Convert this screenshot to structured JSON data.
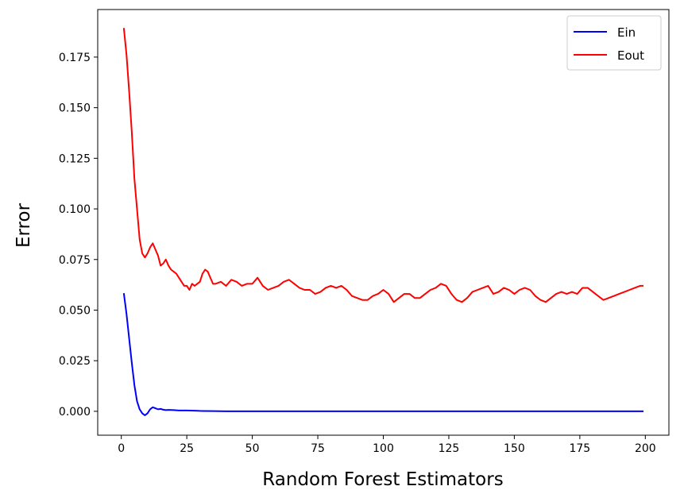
{
  "chart_data": {
    "type": "line",
    "title": "",
    "xlabel": "Random Forest Estimators",
    "ylabel": "Error",
    "xlim": [
      -9,
      209
    ],
    "ylim": [
      -0.0118,
      0.1985
    ],
    "xticks": [
      0,
      25,
      50,
      75,
      100,
      125,
      150,
      175,
      200
    ],
    "xtick_labels": [
      "0",
      "25",
      "50",
      "75",
      "100",
      "125",
      "150",
      "175",
      "200"
    ],
    "yticks": [
      0.0,
      0.025,
      0.05,
      0.075,
      0.1,
      0.125,
      0.15,
      0.175
    ],
    "ytick_labels": [
      "0.000",
      "0.025",
      "0.050",
      "0.075",
      "0.100",
      "0.125",
      "0.150",
      "0.175"
    ],
    "grid": false,
    "legend_position": "top-right",
    "series": [
      {
        "name": "Ein",
        "color": "#0000ff",
        "points": [
          [
            1,
            0.058
          ],
          [
            2,
            0.048
          ],
          [
            3,
            0.036
          ],
          [
            4,
            0.024
          ],
          [
            5,
            0.013
          ],
          [
            6,
            0.005
          ],
          [
            7,
            0.001
          ],
          [
            8,
            -0.001
          ],
          [
            9,
            -0.002
          ],
          [
            10,
            -0.001
          ],
          [
            11,
            0.001
          ],
          [
            12,
            0.002
          ],
          [
            13,
            0.0015
          ],
          [
            14,
            0.001
          ],
          [
            15,
            0.0012
          ],
          [
            16,
            0.0008
          ],
          [
            17,
            0.0006
          ],
          [
            18,
            0.0007
          ],
          [
            20,
            0.0006
          ],
          [
            22,
            0.0004
          ],
          [
            25,
            0.0004
          ],
          [
            28,
            0.0003
          ],
          [
            30,
            0.0002
          ],
          [
            35,
            0.0001
          ],
          [
            40,
            0.0
          ],
          [
            60,
            0.0
          ],
          [
            80,
            0.0
          ],
          [
            100,
            0.0
          ],
          [
            120,
            0.0
          ],
          [
            140,
            0.0
          ],
          [
            160,
            0.0
          ],
          [
            180,
            0.0
          ],
          [
            199,
            0.0
          ]
        ]
      },
      {
        "name": "Eout",
        "color": "#ff0000",
        "points": [
          [
            1,
            0.189
          ],
          [
            2,
            0.176
          ],
          [
            3,
            0.158
          ],
          [
            4,
            0.138
          ],
          [
            5,
            0.115
          ],
          [
            6,
            0.1
          ],
          [
            7,
            0.085
          ],
          [
            8,
            0.078
          ],
          [
            9,
            0.076
          ],
          [
            10,
            0.078
          ],
          [
            11,
            0.081
          ],
          [
            12,
            0.083
          ],
          [
            13,
            0.08
          ],
          [
            14,
            0.077
          ],
          [
            15,
            0.072
          ],
          [
            16,
            0.073
          ],
          [
            17,
            0.075
          ],
          [
            18,
            0.072
          ],
          [
            19,
            0.07
          ],
          [
            20,
            0.069
          ],
          [
            21,
            0.068
          ],
          [
            22,
            0.066
          ],
          [
            23,
            0.064
          ],
          [
            24,
            0.062
          ],
          [
            25,
            0.062
          ],
          [
            26,
            0.06
          ],
          [
            27,
            0.063
          ],
          [
            28,
            0.062
          ],
          [
            29,
            0.063
          ],
          [
            30,
            0.064
          ],
          [
            31,
            0.068
          ],
          [
            32,
            0.07
          ],
          [
            33,
            0.069
          ],
          [
            34,
            0.066
          ],
          [
            35,
            0.063
          ],
          [
            36,
            0.063
          ],
          [
            38,
            0.064
          ],
          [
            40,
            0.062
          ],
          [
            42,
            0.065
          ],
          [
            44,
            0.064
          ],
          [
            46,
            0.062
          ],
          [
            48,
            0.063
          ],
          [
            50,
            0.063
          ],
          [
            52,
            0.066
          ],
          [
            54,
            0.062
          ],
          [
            56,
            0.06
          ],
          [
            58,
            0.061
          ],
          [
            60,
            0.062
          ],
          [
            62,
            0.064
          ],
          [
            64,
            0.065
          ],
          [
            66,
            0.063
          ],
          [
            68,
            0.061
          ],
          [
            70,
            0.06
          ],
          [
            72,
            0.06
          ],
          [
            74,
            0.058
          ],
          [
            76,
            0.059
          ],
          [
            78,
            0.061
          ],
          [
            80,
            0.062
          ],
          [
            82,
            0.061
          ],
          [
            84,
            0.062
          ],
          [
            86,
            0.06
          ],
          [
            88,
            0.057
          ],
          [
            90,
            0.056
          ],
          [
            92,
            0.055
          ],
          [
            94,
            0.055
          ],
          [
            96,
            0.057
          ],
          [
            98,
            0.058
          ],
          [
            100,
            0.06
          ],
          [
            102,
            0.058
          ],
          [
            104,
            0.054
          ],
          [
            106,
            0.056
          ],
          [
            108,
            0.058
          ],
          [
            110,
            0.058
          ],
          [
            112,
            0.056
          ],
          [
            114,
            0.056
          ],
          [
            116,
            0.058
          ],
          [
            118,
            0.06
          ],
          [
            120,
            0.061
          ],
          [
            122,
            0.063
          ],
          [
            124,
            0.062
          ],
          [
            126,
            0.058
          ],
          [
            128,
            0.055
          ],
          [
            130,
            0.054
          ],
          [
            132,
            0.056
          ],
          [
            134,
            0.059
          ],
          [
            136,
            0.06
          ],
          [
            138,
            0.061
          ],
          [
            140,
            0.062
          ],
          [
            142,
            0.058
          ],
          [
            144,
            0.059
          ],
          [
            146,
            0.061
          ],
          [
            148,
            0.06
          ],
          [
            150,
            0.058
          ],
          [
            152,
            0.06
          ],
          [
            154,
            0.061
          ],
          [
            156,
            0.06
          ],
          [
            158,
            0.057
          ],
          [
            160,
            0.055
          ],
          [
            162,
            0.054
          ],
          [
            164,
            0.056
          ],
          [
            166,
            0.058
          ],
          [
            168,
            0.059
          ],
          [
            170,
            0.058
          ],
          [
            172,
            0.059
          ],
          [
            174,
            0.058
          ],
          [
            176,
            0.061
          ],
          [
            178,
            0.061
          ],
          [
            180,
            0.059
          ],
          [
            182,
            0.057
          ],
          [
            184,
            0.055
          ],
          [
            186,
            0.056
          ],
          [
            188,
            0.057
          ],
          [
            190,
            0.058
          ],
          [
            192,
            0.059
          ],
          [
            194,
            0.06
          ],
          [
            196,
            0.061
          ],
          [
            198,
            0.062
          ],
          [
            199,
            0.062
          ]
        ]
      }
    ]
  }
}
